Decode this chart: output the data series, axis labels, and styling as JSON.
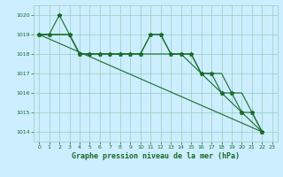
{
  "title": "Graphe pression niveau de la mer (hPa)",
  "background_color": "#cceeff",
  "grid_color": "#99ccbb",
  "line_color": "#1a6b2a",
  "xlim": [
    -0.5,
    23.5
  ],
  "ylim": [
    1013.5,
    1020.5
  ],
  "yticks": [
    1014,
    1015,
    1016,
    1017,
    1018,
    1019,
    1020
  ],
  "xticks": [
    0,
    1,
    2,
    3,
    4,
    5,
    6,
    7,
    8,
    9,
    10,
    11,
    12,
    13,
    14,
    15,
    16,
    17,
    18,
    19,
    20,
    21,
    22,
    23
  ],
  "series1_x": [
    0,
    1,
    2,
    3,
    4,
    5,
    6,
    7,
    8,
    9,
    10,
    11,
    12,
    13,
    14,
    15,
    16,
    17,
    18,
    19,
    20,
    21,
    22
  ],
  "series1_y": [
    1019,
    1019,
    1020,
    1019,
    1018,
    1018,
    1018,
    1018,
    1018,
    1018,
    1018,
    1019,
    1019,
    1018,
    1018,
    1018,
    1017,
    1017,
    1016,
    1016,
    1015,
    1015,
    1014
  ],
  "series2_x": [
    0,
    1,
    2,
    3,
    4,
    5,
    6,
    7,
    8,
    9,
    10,
    11,
    12,
    13,
    14,
    15,
    16,
    17,
    18,
    19,
    20,
    21,
    22
  ],
  "series2_y": [
    1019,
    1019,
    1019,
    1019,
    1018,
    1018,
    1018,
    1018,
    1018,
    1018,
    1018,
    1019,
    1019,
    1018,
    1018,
    1018,
    1017,
    1017,
    1017,
    1016,
    1016,
    1015,
    1014
  ],
  "series3_x": [
    0,
    3,
    4,
    5,
    6,
    7,
    8,
    9,
    10,
    14,
    16,
    18,
    20,
    22
  ],
  "series3_y": [
    1019,
    1019,
    1018,
    1018,
    1018,
    1018,
    1018,
    1018,
    1018,
    1018,
    1017,
    1016,
    1015,
    1014
  ],
  "trend_x": [
    0,
    22
  ],
  "trend_y": [
    1019,
    1014
  ],
  "figsize": [
    3.2,
    2.0
  ],
  "dpi": 100
}
